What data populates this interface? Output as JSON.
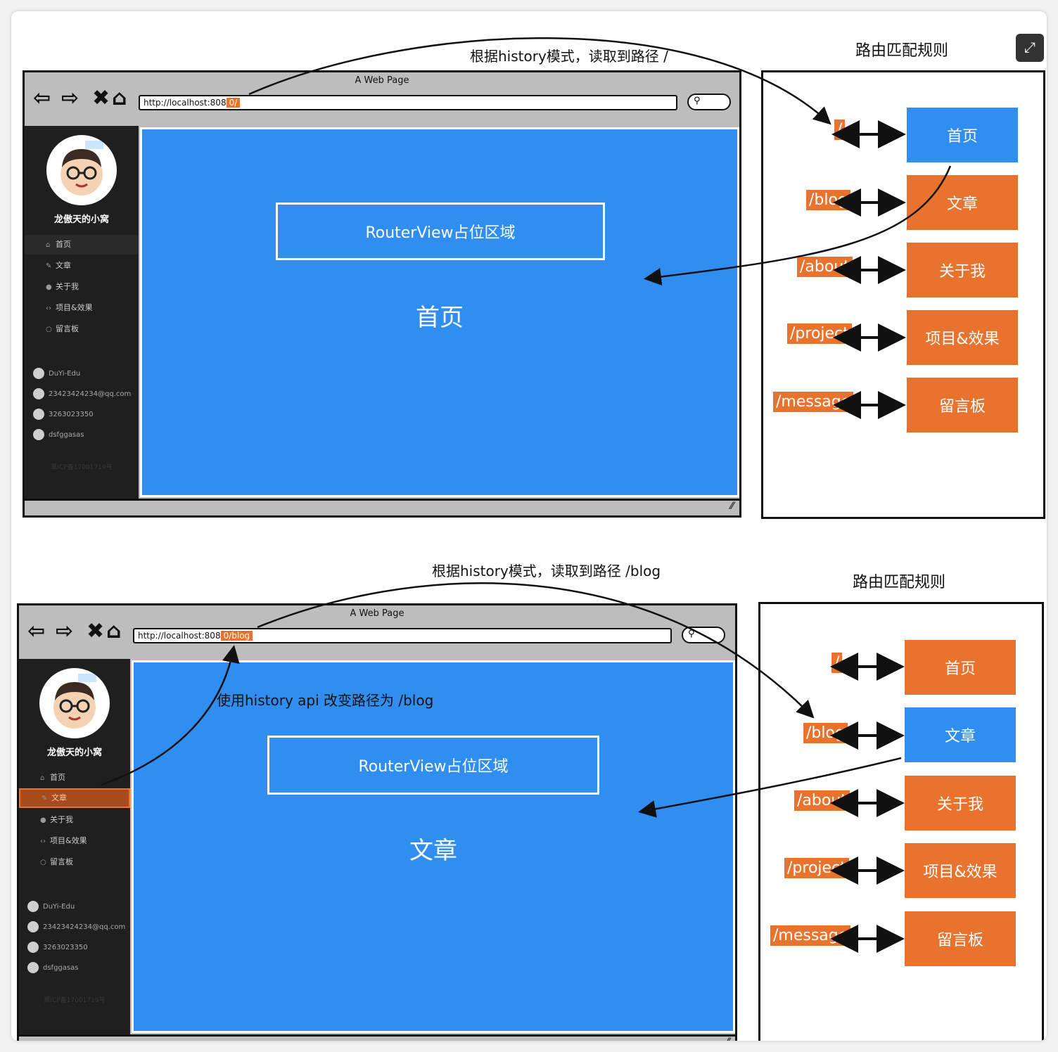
{
  "ui": {
    "expand_icon": "expand-icon"
  },
  "panels": [
    {
      "note": "根据history模式，读取到路径 /",
      "browser": {
        "title": "A Web Page",
        "url_base": "http://localhost:808",
        "url_path": "0/"
      },
      "site_name": "龙傲天的小窝",
      "menu": [
        "首页",
        "文章",
        "关于我",
        "项目&效果",
        "留言板"
      ],
      "contacts": [
        "DuYi-Edu",
        "23423424234@qq.com",
        "3263023350",
        "dsfggasas"
      ],
      "footnote": "黑ICP备17001719号",
      "router_view_label": "RouterView占位区域",
      "page_label": "首页",
      "rules_title": "路由匹配规则",
      "routes": [
        {
          "path": "/",
          "name": "首页"
        },
        {
          "path": "/blog",
          "name": "文章"
        },
        {
          "path": "/about",
          "name": "关于我"
        },
        {
          "path": "/project",
          "name": "项目&效果"
        },
        {
          "path": "/message",
          "name": "留言板"
        }
      ]
    },
    {
      "note": "根据history模式，读取到路径 /blog",
      "note2": "使用history api 改变路径为 /blog",
      "browser": {
        "title": "A Web Page",
        "url_base": "http://localhost:808",
        "url_path": "0/blog"
      },
      "site_name": "龙傲天的小窝",
      "menu": [
        "首页",
        "文章",
        "关于我",
        "项目&效果",
        "留言板"
      ],
      "contacts": [
        "DuYi-Edu",
        "23423424234@qq.com",
        "3263023350",
        "dsfggasas"
      ],
      "footnote": "黑ICP备17001719号",
      "router_view_label": "RouterView占位区域",
      "page_label": "文章",
      "rules_title": "路由匹配规则",
      "routes": [
        {
          "path": "/",
          "name": "首页"
        },
        {
          "path": "/blog",
          "name": "文章"
        },
        {
          "path": "/about",
          "name": "关于我"
        },
        {
          "path": "/project",
          "name": "项目&效果"
        },
        {
          "path": "/message",
          "name": "留言板"
        }
      ]
    }
  ]
}
